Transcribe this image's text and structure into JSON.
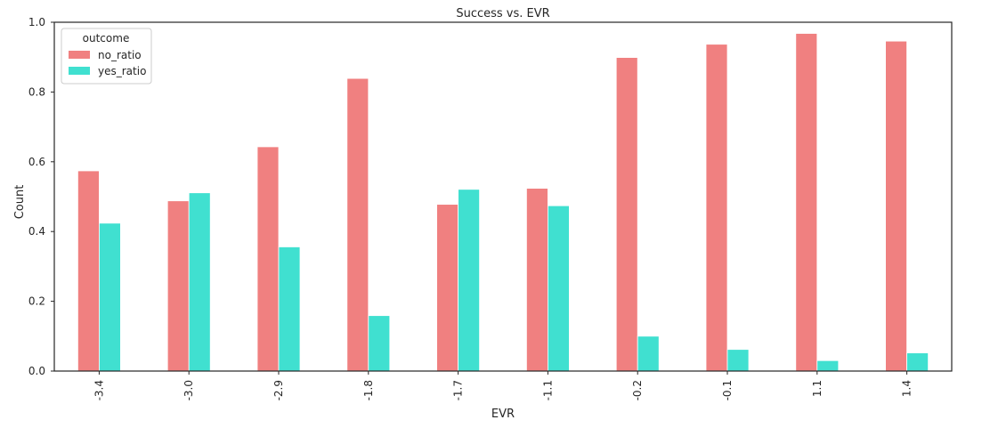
{
  "chart_data": {
    "type": "bar",
    "title": "Success vs. EVR",
    "xlabel": "EVR",
    "ylabel": "Count",
    "categories": [
      "-3.4",
      "-3.0",
      "-2.9",
      "-1.8",
      "-1.7",
      "-1.1",
      "-0.2",
      "-0.1",
      "1.1",
      "1.4"
    ],
    "ylim": [
      0,
      1.0
    ],
    "yticks": [
      "0.0",
      "0.2",
      "0.4",
      "0.6",
      "0.8",
      "1.0"
    ],
    "grid": false,
    "legend": {
      "title": "outcome",
      "placement": "top-left"
    },
    "series": [
      {
        "name": "no_ratio",
        "color": "#f08080",
        "values": [
          0.574,
          0.488,
          0.643,
          0.839,
          0.478,
          0.524,
          0.899,
          0.937,
          0.968,
          0.946
        ]
      },
      {
        "name": "yes_ratio",
        "color": "#40e0d0",
        "values": [
          0.424,
          0.511,
          0.356,
          0.159,
          0.521,
          0.474,
          0.1,
          0.062,
          0.03,
          0.052
        ]
      }
    ]
  }
}
